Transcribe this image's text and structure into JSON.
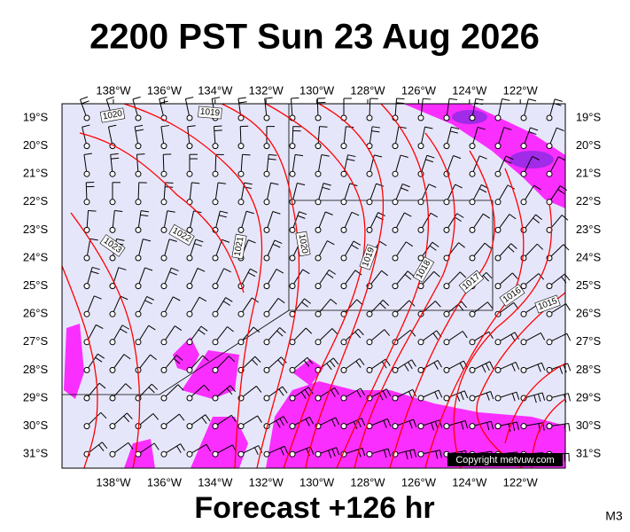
{
  "map": {
    "title": "2200 PST Sun 23 Aug 2026",
    "subtitle": "Forecast +126 hr",
    "model": "M3",
    "copyright": "Copyright metvuw.com",
    "lon_labels": [
      "138°W",
      "136°W",
      "134°W",
      "132°W",
      "130°W",
      "128°W",
      "126°W",
      "124°W",
      "122°W"
    ],
    "lat_labels": [
      "19°S",
      "20°S",
      "21°S",
      "22°S",
      "23°S",
      "24°S",
      "25°S",
      "26°S",
      "27°S",
      "28°S",
      "29°S",
      "30°S",
      "31°S"
    ],
    "isobar_labels": [
      "1020",
      "1019",
      "1023",
      "1022",
      "1021",
      "1020",
      "1019",
      "1018",
      "1017",
      "1016",
      "1015"
    ]
  }
}
